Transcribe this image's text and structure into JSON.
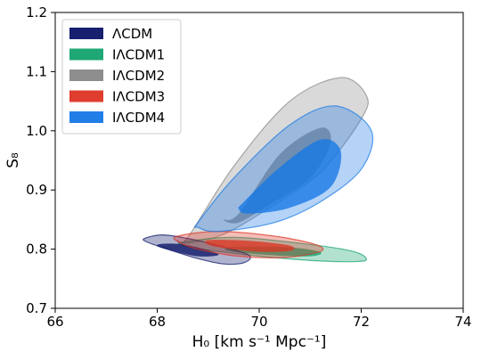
{
  "chart_data": {
    "type": "scatter",
    "subtype": "contour",
    "xlabel": "H₀ [km s⁻¹ Mpc⁻¹]",
    "ylabel": "S₈",
    "xlim": [
      66,
      74
    ],
    "ylim": [
      0.7,
      1.2
    ],
    "xticks": [
      "66",
      "68",
      "70",
      "72",
      "74"
    ],
    "yticks": [
      "0.7",
      "0.8",
      "0.9",
      "1.0",
      "1.1",
      "1.2"
    ],
    "grid": false,
    "legend_position": "top-left",
    "series": [
      {
        "name": "ΛCDM",
        "color": "#0a1466",
        "contours": [
          {
            "level": "2sigma",
            "x": [
              67.75,
              68.1,
              68.6,
              69.2,
              69.8,
              69.7,
              69.3,
              68.8,
              68.2,
              67.8
            ],
            "y": [
              0.818,
              0.824,
              0.818,
              0.806,
              0.79,
              0.777,
              0.775,
              0.784,
              0.8,
              0.812
            ]
          },
          {
            "level": "1sigma",
            "x": [
              68.1,
              68.5,
              69.0,
              69.2,
              68.8,
              68.3,
              68.0
            ],
            "y": [
              0.809,
              0.808,
              0.798,
              0.79,
              0.788,
              0.797,
              0.805
            ]
          }
        ]
      },
      {
        "name": "IΛCDM1",
        "color": "#13a26e",
        "contours": [
          {
            "level": "2sigma",
            "x": [
              68.5,
              69.5,
              70.8,
              71.8,
              72.1,
              71.9,
              71.0,
              69.8,
              68.8,
              68.5
            ],
            "y": [
              0.812,
              0.82,
              0.81,
              0.797,
              0.784,
              0.779,
              0.781,
              0.79,
              0.801,
              0.807
            ]
          },
          {
            "level": "1sigma",
            "x": [
              69.5,
              70.6,
              71.2,
              71.0,
              70.2,
              69.4
            ],
            "y": [
              0.804,
              0.803,
              0.795,
              0.788,
              0.79,
              0.797
            ]
          }
        ]
      },
      {
        "name": "IΛCDM2",
        "color": "#888888",
        "contours": [
          {
            "level": "2sigma",
            "x": [
              68.6,
              69.5,
              70.6,
              71.6,
              72.1,
              72.0,
              71.2,
              70.2,
              69.3,
              68.6,
              68.4
            ],
            "y": [
              0.82,
              0.94,
              1.05,
              1.09,
              1.06,
              1.02,
              0.93,
              0.87,
              0.825,
              0.81,
              0.815
            ]
          },
          {
            "level": "1sigma",
            "x": [
              69.6,
              70.4,
              71.2,
              71.4,
              71.0,
              70.2,
              69.6,
              69.3
            ],
            "y": [
              0.86,
              0.96,
              1.005,
              0.98,
              0.92,
              0.875,
              0.845,
              0.85
            ]
          }
        ]
      },
      {
        "name": "IΛCDM3",
        "color": "#dd3322",
        "contours": [
          {
            "level": "2sigma",
            "x": [
              68.4,
              69.2,
              70.3,
              71.1,
              71.2,
              70.5,
              69.6,
              68.8,
              68.4
            ],
            "y": [
              0.822,
              0.83,
              0.822,
              0.808,
              0.796,
              0.786,
              0.788,
              0.8,
              0.813
            ]
          },
          {
            "level": "1sigma",
            "x": [
              69.0,
              69.8,
              70.6,
              70.6,
              69.9,
              69.1
            ],
            "y": [
              0.815,
              0.814,
              0.806,
              0.797,
              0.796,
              0.805
            ]
          }
        ]
      },
      {
        "name": "IΛCDM4",
        "color": "#1577e6",
        "contours": [
          {
            "level": "2sigma",
            "x": [
              68.8,
              69.5,
              70.6,
              71.5,
              72.2,
              72.0,
              71.2,
              70.3,
              69.2,
              68.8
            ],
            "y": [
              0.845,
              0.92,
              1.01,
              1.042,
              1.0,
              0.935,
              0.88,
              0.845,
              0.83,
              0.837
            ]
          },
          {
            "level": "1sigma",
            "x": [
              69.7,
              70.4,
              71.2,
              71.6,
              71.4,
              70.6,
              69.8,
              69.6
            ],
            "y": [
              0.88,
              0.938,
              0.985,
              0.965,
              0.905,
              0.87,
              0.86,
              0.868
            ]
          }
        ]
      }
    ]
  }
}
